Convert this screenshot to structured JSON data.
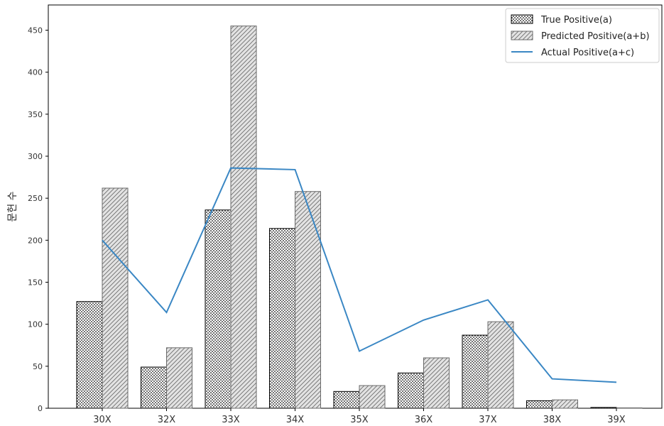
{
  "chart_data": {
    "type": "bar",
    "categories": [
      "30X",
      "32X",
      "33X",
      "34X",
      "35X",
      "36X",
      "37X",
      "38X",
      "39X"
    ],
    "series": [
      {
        "name": "True Positive(a)",
        "kind": "bar",
        "pattern": "dots",
        "values": [
          127,
          49,
          236,
          214,
          20,
          42,
          87,
          9,
          1
        ]
      },
      {
        "name": "Predicted Positive(a+b)",
        "kind": "bar",
        "pattern": "hatch",
        "values": [
          262,
          72,
          455,
          258,
          27,
          60,
          103,
          10,
          0.5
        ]
      },
      {
        "name": "Actual Positive(a+c)",
        "kind": "line",
        "color": "#3a87c4",
        "values": [
          200,
          114,
          286,
          284,
          68,
          105,
          129,
          35,
          31
        ]
      }
    ],
    "ylabel": "문헌 수",
    "xlabel": "",
    "ylim": [
      0,
      480
    ],
    "yticks": [
      0,
      50,
      100,
      150,
      200,
      250,
      300,
      350,
      400,
      450
    ],
    "legend_position": "top-right",
    "grid": false
  }
}
